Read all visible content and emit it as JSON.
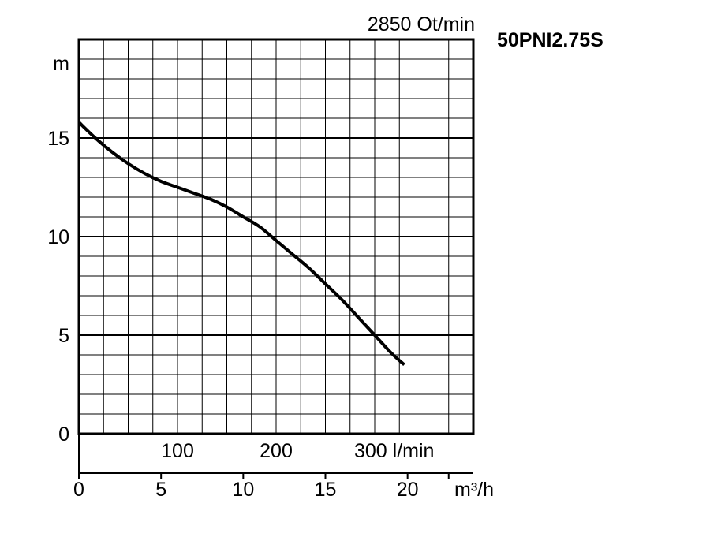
{
  "chart_data": {
    "type": "line",
    "title": "50PNI2.75S",
    "speed_label": "2850 Ot/min",
    "ylabel": "m",
    "xlabel": "m³/h",
    "secondary_xlabel_suffix": "l/min",
    "ylim": [
      0,
      20
    ],
    "xlim": [
      0,
      24
    ],
    "y_ticks": [
      "0",
      "5",
      "10",
      "15"
    ],
    "y_tick_values": [
      0,
      5,
      10,
      15
    ],
    "x_ticks": [
      "0",
      "5",
      "10",
      "15",
      "20"
    ],
    "x_tick_values": [
      0,
      5,
      10,
      15,
      20
    ],
    "secondary_x_ticks": [
      "100",
      "200",
      "300 l/min"
    ],
    "secondary_x_tick_values": [
      100,
      200,
      300
    ],
    "grid": true,
    "series": [
      {
        "x": [
          0,
          1,
          2,
          3,
          4,
          5,
          6,
          7,
          8,
          9,
          10,
          11,
          12,
          13,
          14,
          15,
          16,
          17,
          18,
          19,
          19.8
        ],
        "y": [
          15.8,
          15.0,
          14.3,
          13.7,
          13.2,
          12.8,
          12.5,
          12.2,
          11.9,
          11.5,
          11.0,
          10.5,
          9.8,
          9.1,
          8.4,
          7.6,
          6.8,
          5.9,
          5.0,
          4.1,
          3.5
        ]
      }
    ]
  }
}
